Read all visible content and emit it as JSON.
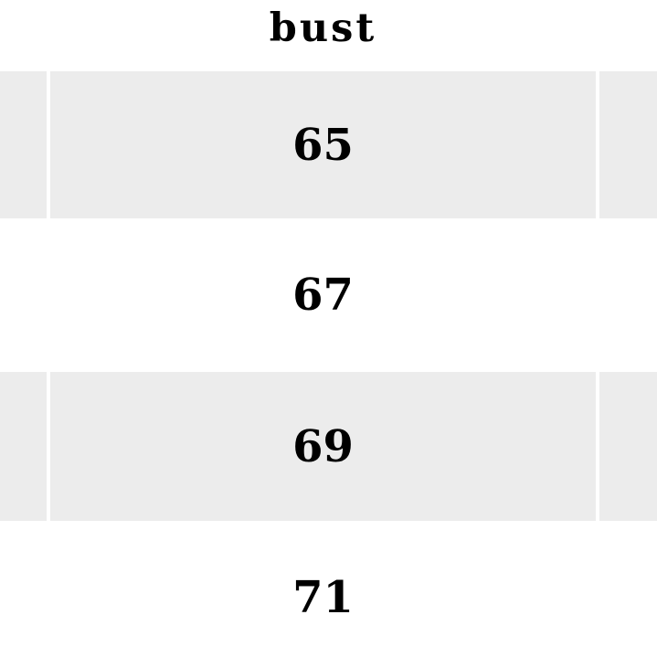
{
  "table": {
    "header": {
      "label": "bust"
    },
    "rows": [
      {
        "bust": "65",
        "striped": true
      },
      {
        "bust": "67",
        "striped": false
      },
      {
        "bust": "69",
        "striped": true
      },
      {
        "bust": "71",
        "striped": false
      }
    ],
    "colors": {
      "stripe": "#ececec",
      "text": "#000000",
      "background": "#ffffff"
    }
  }
}
